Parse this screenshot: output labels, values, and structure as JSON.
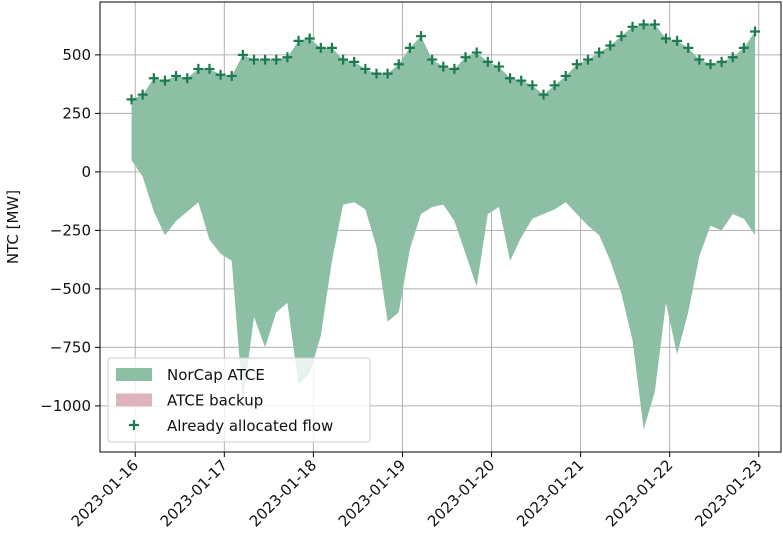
{
  "chart_data": {
    "type": "area",
    "ylabel": "NTC [MW]",
    "x": [
      "2023-01-15T23:00",
      "2023-01-16T02:00",
      "2023-01-16T05:00",
      "2023-01-16T08:00",
      "2023-01-16T11:00",
      "2023-01-16T14:00",
      "2023-01-16T17:00",
      "2023-01-16T20:00",
      "2023-01-16T23:00",
      "2023-01-17T02:00",
      "2023-01-17T05:00",
      "2023-01-17T08:00",
      "2023-01-17T11:00",
      "2023-01-17T14:00",
      "2023-01-17T17:00",
      "2023-01-17T20:00",
      "2023-01-17T23:00",
      "2023-01-18T02:00",
      "2023-01-18T05:00",
      "2023-01-18T08:00",
      "2023-01-18T11:00",
      "2023-01-18T14:00",
      "2023-01-18T17:00",
      "2023-01-18T20:00",
      "2023-01-18T23:00",
      "2023-01-19T02:00",
      "2023-01-19T05:00",
      "2023-01-19T08:00",
      "2023-01-19T11:00",
      "2023-01-19T14:00",
      "2023-01-19T17:00",
      "2023-01-19T20:00",
      "2023-01-19T23:00",
      "2023-01-20T02:00",
      "2023-01-20T05:00",
      "2023-01-20T08:00",
      "2023-01-20T11:00",
      "2023-01-20T14:00",
      "2023-01-20T17:00",
      "2023-01-20T20:00",
      "2023-01-20T23:00",
      "2023-01-21T02:00",
      "2023-01-21T05:00",
      "2023-01-21T08:00",
      "2023-01-21T11:00",
      "2023-01-21T14:00",
      "2023-01-21T17:00",
      "2023-01-21T20:00",
      "2023-01-21T23:00",
      "2023-01-22T02:00",
      "2023-01-22T05:00",
      "2023-01-22T08:00",
      "2023-01-22T11:00",
      "2023-01-22T14:00",
      "2023-01-22T17:00",
      "2023-01-22T20:00",
      "2023-01-22T23:00"
    ],
    "series": [
      {
        "name": "NorCap ATCE",
        "color": "#8cbfa3",
        "values": [
          310,
          330,
          400,
          390,
          410,
          400,
          440,
          440,
          415,
          410,
          500,
          480,
          480,
          480,
          490,
          560,
          570,
          530,
          530,
          480,
          470,
          440,
          420,
          420,
          460,
          530,
          580,
          480,
          450,
          440,
          490,
          510,
          470,
          450,
          400,
          390,
          370,
          330,
          370,
          410,
          460,
          480,
          510,
          540,
          580,
          620,
          630,
          630,
          570,
          560,
          530,
          480,
          460,
          470,
          490,
          530,
          600
        ],
        "lower": [
          50,
          -20,
          -170,
          -270,
          -210,
          -170,
          -130,
          -290,
          -350,
          -380,
          -980,
          -620,
          -750,
          -600,
          -560,
          -910,
          -860,
          -700,
          -380,
          -140,
          -130,
          -160,
          -320,
          -640,
          -600,
          -330,
          -180,
          -150,
          -140,
          -210,
          -350,
          -490,
          -180,
          -150,
          -380,
          -280,
          -200,
          -180,
          -160,
          -130,
          -180,
          -230,
          -270,
          -380,
          -520,
          -720,
          -1100,
          -940,
          -560,
          -780,
          -600,
          -360,
          -230,
          -250,
          -180,
          -200,
          -270
        ]
      },
      {
        "name": "ATCE backup",
        "color": "#dfb3bb"
      },
      {
        "name": "Already allocated flow",
        "color": "#1d7a50",
        "marker": "+",
        "values": [
          310,
          330,
          400,
          390,
          410,
          400,
          440,
          440,
          415,
          410,
          500,
          480,
          480,
          480,
          490,
          560,
          570,
          530,
          530,
          480,
          470,
          440,
          420,
          420,
          460,
          530,
          580,
          480,
          450,
          440,
          490,
          510,
          470,
          450,
          400,
          390,
          370,
          330,
          370,
          410,
          460,
          480,
          510,
          540,
          580,
          620,
          630,
          630,
          570,
          560,
          530,
          480,
          460,
          470,
          490,
          530,
          600
        ]
      }
    ],
    "xlim": [
      "2023-01-15T14:30",
      "2023-01-23T06:00"
    ],
    "xticks": [
      "2023-01-16",
      "2023-01-17",
      "2023-01-18",
      "2023-01-19",
      "2023-01-20",
      "2023-01-21",
      "2023-01-22",
      "2023-01-23"
    ],
    "ylim": [
      -1197,
      726
    ],
    "yticks": [
      {
        "value": -1000,
        "label": "−1000"
      },
      {
        "value": -750,
        "label": "−750"
      },
      {
        "value": -500,
        "label": "−500"
      },
      {
        "value": -250,
        "label": "−250"
      },
      0,
      250,
      500
    ],
    "grid": true,
    "legend": "lower left"
  }
}
